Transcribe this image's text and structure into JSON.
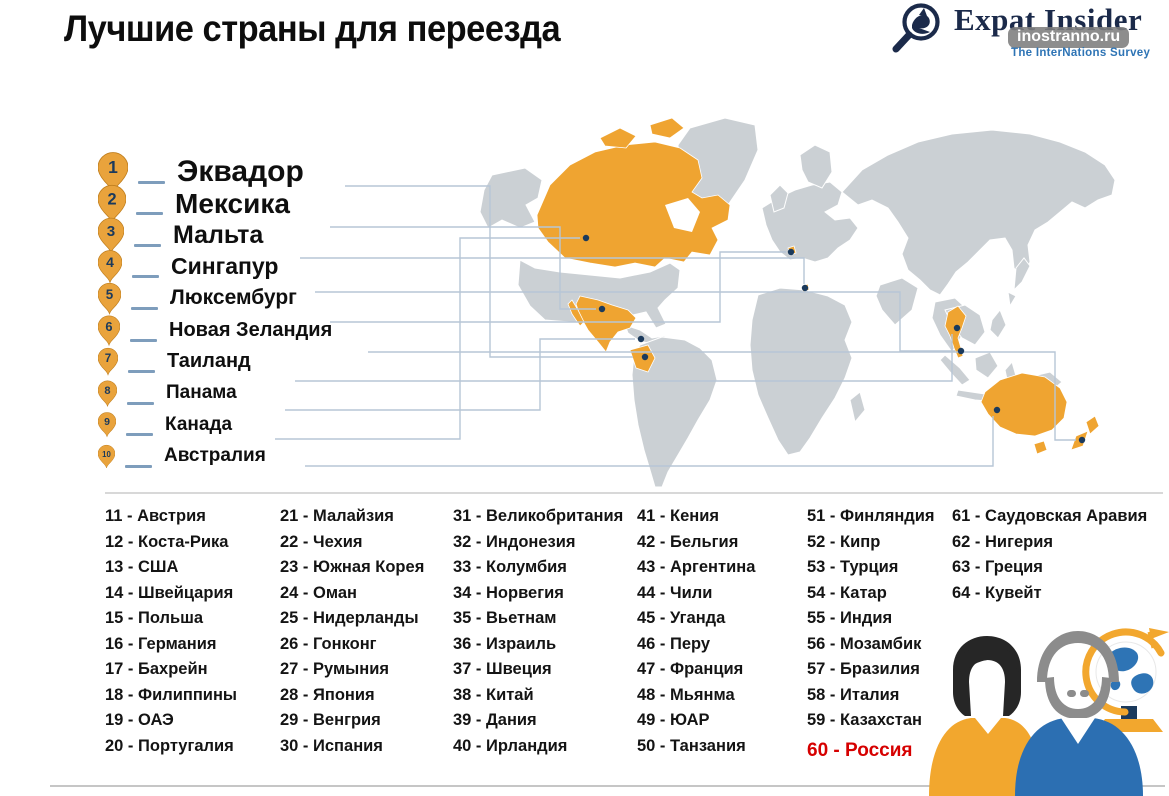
{
  "title": "Лучшие страны для переезда",
  "brand": {
    "name": "Expat Insider",
    "watermark": "inostranno.ru",
    "tagline": "The InterNations Survey"
  },
  "top10": [
    {
      "rank": 1,
      "name": "Эквадор"
    },
    {
      "rank": 2,
      "name": "Мексика"
    },
    {
      "rank": 3,
      "name": "Мальта"
    },
    {
      "rank": 4,
      "name": "Сингапур"
    },
    {
      "rank": 5,
      "name": "Люксембург"
    },
    {
      "rank": 6,
      "name": "Новая Зеландия"
    },
    {
      "rank": 7,
      "name": "Таиланд"
    },
    {
      "rank": 8,
      "name": "Панама"
    },
    {
      "rank": 9,
      "name": "Канада"
    },
    {
      "rank": 10,
      "name": "Австралия"
    }
  ],
  "rankings": {
    "columns": [
      {
        "items": [
          {
            "rank": 11,
            "name": "Австрия"
          },
          {
            "rank": 12,
            "name": "Коста-Рика"
          },
          {
            "rank": 13,
            "name": "США"
          },
          {
            "rank": 14,
            "name": "Швейцария"
          },
          {
            "rank": 15,
            "name": "Польша"
          },
          {
            "rank": 16,
            "name": "Германия"
          },
          {
            "rank": 17,
            "name": "Бахрейн"
          },
          {
            "rank": 18,
            "name": "Филиппины"
          },
          {
            "rank": 19,
            "name": "ОАЭ"
          },
          {
            "rank": 20,
            "name": "Португалия"
          }
        ]
      },
      {
        "items": [
          {
            "rank": 21,
            "name": "Малайзия"
          },
          {
            "rank": 22,
            "name": "Чехия"
          },
          {
            "rank": 23,
            "name": "Южная Корея"
          },
          {
            "rank": 24,
            "name": "Оман"
          },
          {
            "rank": 25,
            "name": "Нидерланды"
          },
          {
            "rank": 26,
            "name": "Гонконг"
          },
          {
            "rank": 27,
            "name": "Румыния"
          },
          {
            "rank": 28,
            "name": "Япония"
          },
          {
            "rank": 29,
            "name": "Венгрия"
          },
          {
            "rank": 30,
            "name": "Испания"
          }
        ]
      },
      {
        "items": [
          {
            "rank": 31,
            "name": "Великобритания"
          },
          {
            "rank": 32,
            "name": "Индонезия"
          },
          {
            "rank": 33,
            "name": "Колумбия"
          },
          {
            "rank": 34,
            "name": "Норвегия"
          },
          {
            "rank": 35,
            "name": "Вьетнам"
          },
          {
            "rank": 36,
            "name": "Израиль"
          },
          {
            "rank": 37,
            "name": "Швеция"
          },
          {
            "rank": 38,
            "name": "Китай"
          },
          {
            "rank": 39,
            "name": "Дания"
          },
          {
            "rank": 40,
            "name": "Ирландия"
          }
        ]
      },
      {
        "items": [
          {
            "rank": 41,
            "name": "Кения"
          },
          {
            "rank": 42,
            "name": "Бельгия"
          },
          {
            "rank": 43,
            "name": "Аргентина"
          },
          {
            "rank": 44,
            "name": "Чили"
          },
          {
            "rank": 45,
            "name": "Уганда"
          },
          {
            "rank": 46,
            "name": "Перу"
          },
          {
            "rank": 47,
            "name": "Франция"
          },
          {
            "rank": 48,
            "name": "Мьянма"
          },
          {
            "rank": 49,
            "name": "ЮАР"
          },
          {
            "rank": 50,
            "name": "Танзания"
          }
        ]
      },
      {
        "items": [
          {
            "rank": 51,
            "name": "Финляндия"
          },
          {
            "rank": 52,
            "name": "Кипр"
          },
          {
            "rank": 53,
            "name": "Турция"
          },
          {
            "rank": 54,
            "name": "Катар"
          },
          {
            "rank": 55,
            "name": "Индия"
          },
          {
            "rank": 56,
            "name": "Мозамбик"
          },
          {
            "rank": 57,
            "name": "Бразилия"
          },
          {
            "rank": 58,
            "name": "Италия"
          },
          {
            "rank": 59,
            "name": "Казахстан"
          },
          {
            "rank": 60,
            "name": "Россия",
            "highlight": true
          }
        ]
      },
      {
        "items": [
          {
            "rank": 61,
            "name": "Саудовская Аравия"
          },
          {
            "rank": 62,
            "name": "Нигерия"
          },
          {
            "rank": 63,
            "name": "Греция"
          },
          {
            "rank": 64,
            "name": "Кувейт"
          }
        ]
      }
    ]
  },
  "colors": {
    "highlight": "#EFA431",
    "pin": "#E9A33C",
    "land": "#CBD0D4",
    "line": "#B7C6D6",
    "dash": "#7E9DBC",
    "dot": "#1B3A5C",
    "russia": "#D60000",
    "brandNavy": "#1B2A4A",
    "tagline": "#2E74B5"
  }
}
